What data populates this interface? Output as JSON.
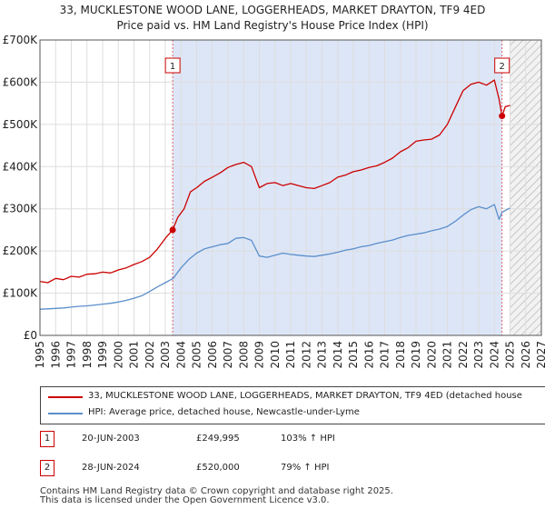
{
  "chart_data": {
    "type": "line",
    "title": "33, MUCKLESTONE WOOD LANE, LOGGERHEADS, MARKET DRAYTON, TF9 4ED",
    "subtitle": "Price paid vs. HM Land Registry's House Price Index (HPI)",
    "y_tick_labels": [
      "£0",
      "£100K",
      "£200K",
      "£300K",
      "£400K",
      "£500K",
      "£600K",
      "£700K"
    ],
    "y_ticks": [
      0,
      100000,
      200000,
      300000,
      400000,
      500000,
      600000,
      700000
    ],
    "ylim": [
      0,
      700000
    ],
    "xlim": [
      1995,
      2027
    ],
    "x_ticks": [
      "1995",
      "1996",
      "1997",
      "1998",
      "1999",
      "2000",
      "2001",
      "2002",
      "2003",
      "2004",
      "2005",
      "2006",
      "2007",
      "2008",
      "2009",
      "2010",
      "2011",
      "2012",
      "2013",
      "2014",
      "2015",
      "2016",
      "2017",
      "2018",
      "2019",
      "2020",
      "2021",
      "2022",
      "2023",
      "2024",
      "2025",
      "2026",
      "2027"
    ],
    "shaded_period": [
      2003.47,
      2024.49
    ],
    "forecast_hatch_from": 2025.0,
    "series": [
      {
        "name": "33, MUCKLESTONE WOOD LANE, LOGGERHEADS, MARKET DRAYTON, TF9 4ED (detached house",
        "color": "#cc0000",
        "x": [
          1995.0,
          1995.5,
          1996.0,
          1996.5,
          1997.0,
          1997.5,
          1998.0,
          1998.5,
          1999.0,
          1999.5,
          2000.0,
          2000.5,
          2001.0,
          2001.5,
          2002.0,
          2002.5,
          2003.0,
          2003.47,
          2003.8,
          2004.2,
          2004.6,
          2005.0,
          2005.5,
          2006.0,
          2006.5,
          2007.0,
          2007.5,
          2008.0,
          2008.5,
          2008.8,
          2009.0,
          2009.5,
          2010.0,
          2010.5,
          2011.0,
          2011.5,
          2012.0,
          2012.5,
          2013.0,
          2013.5,
          2014.0,
          2014.5,
          2015.0,
          2015.5,
          2016.0,
          2016.5,
          2017.0,
          2017.5,
          2018.0,
          2018.5,
          2019.0,
          2019.5,
          2020.0,
          2020.5,
          2021.0,
          2021.5,
          2022.0,
          2022.5,
          2023.0,
          2023.5,
          2024.0,
          2024.3,
          2024.49,
          2024.7,
          2025.0
        ],
        "values": [
          128000,
          125000,
          135000,
          132000,
          140000,
          138000,
          145000,
          146000,
          150000,
          148000,
          155000,
          160000,
          168000,
          175000,
          185000,
          205000,
          230000,
          249995,
          280000,
          300000,
          340000,
          350000,
          365000,
          375000,
          385000,
          398000,
          405000,
          410000,
          400000,
          370000,
          350000,
          360000,
          362000,
          355000,
          360000,
          355000,
          350000,
          348000,
          355000,
          362000,
          375000,
          380000,
          388000,
          392000,
          398000,
          402000,
          410000,
          420000,
          435000,
          445000,
          460000,
          463000,
          465000,
          475000,
          500000,
          540000,
          580000,
          595000,
          600000,
          593000,
          605000,
          560000,
          520000,
          542000,
          545000
        ]
      },
      {
        "name": "HPI: Average price, detached house, Newcastle-under-Lyme",
        "color": "#5b8fcb",
        "x": [
          1995.0,
          1995.5,
          1996.0,
          1996.5,
          1997.0,
          1997.5,
          1998.0,
          1998.5,
          1999.0,
          1999.5,
          2000.0,
          2000.5,
          2001.0,
          2001.5,
          2002.0,
          2002.5,
          2003.0,
          2003.5,
          2004.0,
          2004.5,
          2005.0,
          2005.5,
          2006.0,
          2006.5,
          2007.0,
          2007.5,
          2008.0,
          2008.5,
          2009.0,
          2009.5,
          2010.0,
          2010.5,
          2011.0,
          2011.5,
          2012.0,
          2012.5,
          2013.0,
          2013.5,
          2014.0,
          2014.5,
          2015.0,
          2015.5,
          2016.0,
          2016.5,
          2017.0,
          2017.5,
          2018.0,
          2018.5,
          2019.0,
          2019.5,
          2020.0,
          2020.5,
          2021.0,
          2021.5,
          2022.0,
          2022.5,
          2023.0,
          2023.5,
          2024.0,
          2024.3,
          2024.5,
          2025.0
        ],
        "values": [
          62000,
          63000,
          64000,
          65000,
          67000,
          69000,
          70000,
          72000,
          74000,
          76000,
          79000,
          83000,
          88000,
          94000,
          104000,
          115000,
          125000,
          135000,
          160000,
          180000,
          195000,
          205000,
          210000,
          215000,
          218000,
          230000,
          232000,
          225000,
          188000,
          185000,
          190000,
          195000,
          192000,
          190000,
          188000,
          187000,
          190000,
          193000,
          197000,
          202000,
          205000,
          210000,
          213000,
          218000,
          222000,
          226000,
          232000,
          237000,
          240000,
          243000,
          248000,
          252000,
          258000,
          270000,
          285000,
          298000,
          305000,
          300000,
          310000,
          275000,
          292000,
          302000
        ]
      }
    ],
    "sales": [
      {
        "id": "1",
        "date": "20-JUN-2003",
        "price": "£249,995",
        "hpi": "103% ↑ HPI",
        "x": 2003.47,
        "value": 249995
      },
      {
        "id": "2",
        "date": "28-JUN-2024",
        "price": "£520,000",
        "hpi": "79% ↑ HPI",
        "x": 2024.49,
        "value": 520000
      }
    ],
    "legend": [
      "33, MUCKLESTONE WOOD LANE, LOGGERHEADS, MARKET DRAYTON, TF9 4ED (detached house",
      "HPI: Average price, detached house, Newcastle-under-Lyme"
    ]
  },
  "footer": {
    "line1": "Contains HM Land Registry data © Crown copyright and database right 2025.",
    "line2": "This data is licensed under the Open Government Licence v3.0."
  },
  "colors": {
    "price_line": "#cc0000",
    "hpi_line": "#5b8fcb",
    "shade": "#dde6f7",
    "grid": "#dddddd"
  }
}
